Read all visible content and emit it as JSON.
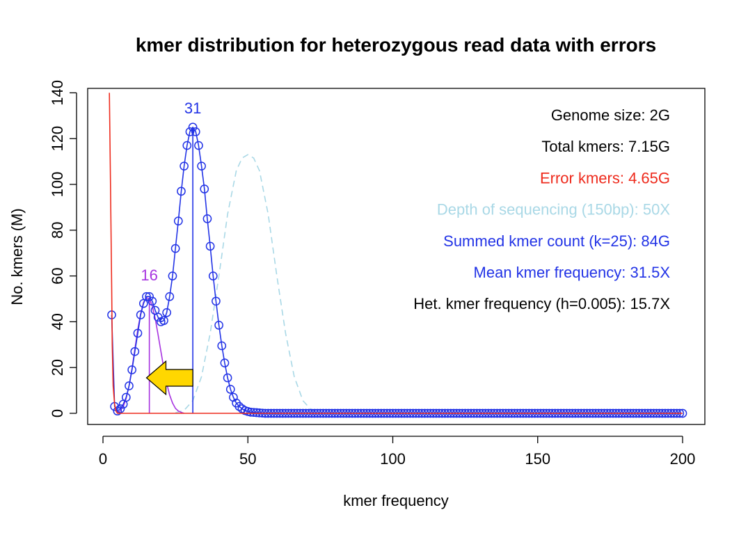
{
  "chart_data": {
    "type": "line",
    "title": "kmer distribution for heterozygous read data with errors",
    "xlabel": "kmer frequency",
    "ylabel": "No. kmers (M)",
    "xlim": [
      0,
      200
    ],
    "ylim": [
      0,
      140
    ],
    "x_ticks": [
      0,
      50,
      100,
      150,
      200
    ],
    "x_tick_labels": [
      "0",
      "50",
      "100",
      "150",
      "200"
    ],
    "y_ticks": [
      0,
      20,
      40,
      60,
      80,
      100,
      120,
      140
    ],
    "y_tick_labels": [
      "0",
      "20",
      "40",
      "60",
      "80",
      "100",
      "120",
      "140"
    ],
    "grid": false,
    "colors": {
      "observed": "#2233e6",
      "total_fit": "#2233e6",
      "error": "#ee2a1c",
      "heterozygous": "#a733e0",
      "depth": "#a9d8e6",
      "arrow_fill": "#ffd700",
      "arrow_stroke": "#000000"
    },
    "series": [
      {
        "key": "observed",
        "style": "open-circles",
        "x": [
          3,
          4,
          5,
          6,
          7,
          8,
          9,
          10,
          11,
          12,
          13,
          14,
          15,
          16,
          17,
          18,
          19,
          20,
          21,
          22,
          23,
          24,
          25,
          26,
          27,
          28,
          29,
          30,
          31,
          32,
          33,
          34,
          35,
          36,
          37,
          38,
          39,
          40,
          41,
          42,
          43,
          44,
          45,
          46,
          47,
          48,
          49,
          50,
          51,
          52,
          53,
          54,
          55
        ],
        "y": [
          43,
          3,
          1,
          2,
          4,
          7,
          12,
          19,
          27,
          35,
          43,
          48,
          51,
          51,
          49,
          45,
          42,
          40,
          40.5,
          44,
          51,
          60,
          72,
          84,
          97,
          108,
          117,
          123,
          125,
          123,
          117,
          108,
          98,
          85,
          73,
          60,
          49,
          38.5,
          29.5,
          22,
          15.5,
          10.5,
          7,
          4.5,
          3,
          2,
          1.2,
          0.8,
          0.5,
          0.4,
          0.3,
          0.2,
          0.1
        ]
      },
      {
        "key": "total_fit",
        "style": "line",
        "x": [
          3,
          4,
          5,
          6,
          7,
          8,
          9,
          10,
          11,
          12,
          13,
          14,
          15,
          16,
          17,
          18,
          19,
          20,
          21,
          22,
          23,
          24,
          25,
          26,
          27,
          28,
          29,
          30,
          31,
          32,
          33,
          34,
          35,
          36,
          37,
          38,
          39,
          40,
          41,
          42,
          43,
          44,
          45,
          46,
          47,
          48,
          49,
          50,
          51,
          52,
          53,
          54,
          55,
          60
        ],
        "y": [
          43,
          3,
          1,
          2,
          4,
          7,
          12,
          19,
          27,
          35,
          43,
          48,
          51,
          51,
          49,
          45,
          42,
          40,
          40.5,
          44,
          51,
          60,
          72,
          84,
          97,
          108,
          117,
          123,
          125,
          123,
          117,
          108,
          98,
          85,
          73,
          60,
          49,
          38.5,
          29.5,
          22,
          15.5,
          10.5,
          7,
          4.5,
          3,
          2,
          1.2,
          0.8,
          0.5,
          0.4,
          0.3,
          0.2,
          0.1,
          0
        ]
      },
      {
        "key": "error",
        "style": "line",
        "x": [
          2.2,
          2.6,
          3,
          3.2,
          3.5,
          4,
          4.5,
          5,
          6,
          200
        ],
        "y": [
          140,
          100,
          55,
          30,
          12,
          4,
          1,
          0,
          0,
          0
        ]
      },
      {
        "key": "heterozygous",
        "style": "line",
        "x": [
          5,
          6,
          7,
          8,
          9,
          10,
          11,
          12,
          13,
          14,
          15,
          16,
          17,
          18,
          19,
          20,
          21,
          22,
          23,
          24,
          25,
          26,
          27,
          28
        ],
        "y": [
          0.3,
          1.2,
          3,
          6.5,
          12,
          19.5,
          28,
          36.5,
          43.5,
          48.5,
          50.5,
          50,
          47,
          41.5,
          34.5,
          27,
          19.5,
          13,
          8,
          4.5,
          2.2,
          1,
          0.4,
          0
        ]
      },
      {
        "key": "depth",
        "style": "dashed",
        "x": [
          25,
          28,
          31,
          34,
          37,
          40,
          43,
          46,
          48,
          50,
          52,
          54,
          57,
          60,
          63,
          66,
          69,
          72,
          75
        ],
        "y": [
          0.2,
          1.3,
          5.5,
          16,
          35,
          60,
          87,
          106,
          111.5,
          113,
          111.5,
          106,
          87,
          60,
          35,
          16,
          5.5,
          1.3,
          0.2
        ]
      }
    ],
    "vlines": [
      {
        "x": 16,
        "y_top": 50,
        "color": "#a733e0"
      },
      {
        "x": 31,
        "y_top": 125,
        "color": "#2233e6"
      }
    ],
    "tail": {
      "x_start": 56,
      "x_end": 200,
      "y": 0
    },
    "peak_labels": [
      {
        "x": 16,
        "y": 58,
        "text": "16",
        "color": "#a733e0"
      },
      {
        "x": 31,
        "y": 131,
        "text": "31",
        "color": "#2233e6"
      }
    ],
    "arrow": {
      "tip_x": 15,
      "tail_x": 31,
      "y": 15.5,
      "direction": "left"
    },
    "legend_placement": "top-right",
    "legend": [
      {
        "text": "Genome size: 2G",
        "color": "#000000"
      },
      {
        "text": "Total kmers: 7.15G",
        "color": "#000000"
      },
      {
        "text": "Error kmers: 4.65G",
        "color": "#ee2a1c"
      },
      {
        "text": "Depth of sequencing (150bp): 50X",
        "color": "#a9d8e6"
      },
      {
        "text": "Summed kmer count (k=25): 84G",
        "color": "#2233e6"
      },
      {
        "text": "Mean kmer frequency: 31.5X",
        "color": "#2233e6"
      },
      {
        "text": "Het. kmer frequency (h=0.005): 15.7X",
        "color": "#000000"
      }
    ]
  }
}
